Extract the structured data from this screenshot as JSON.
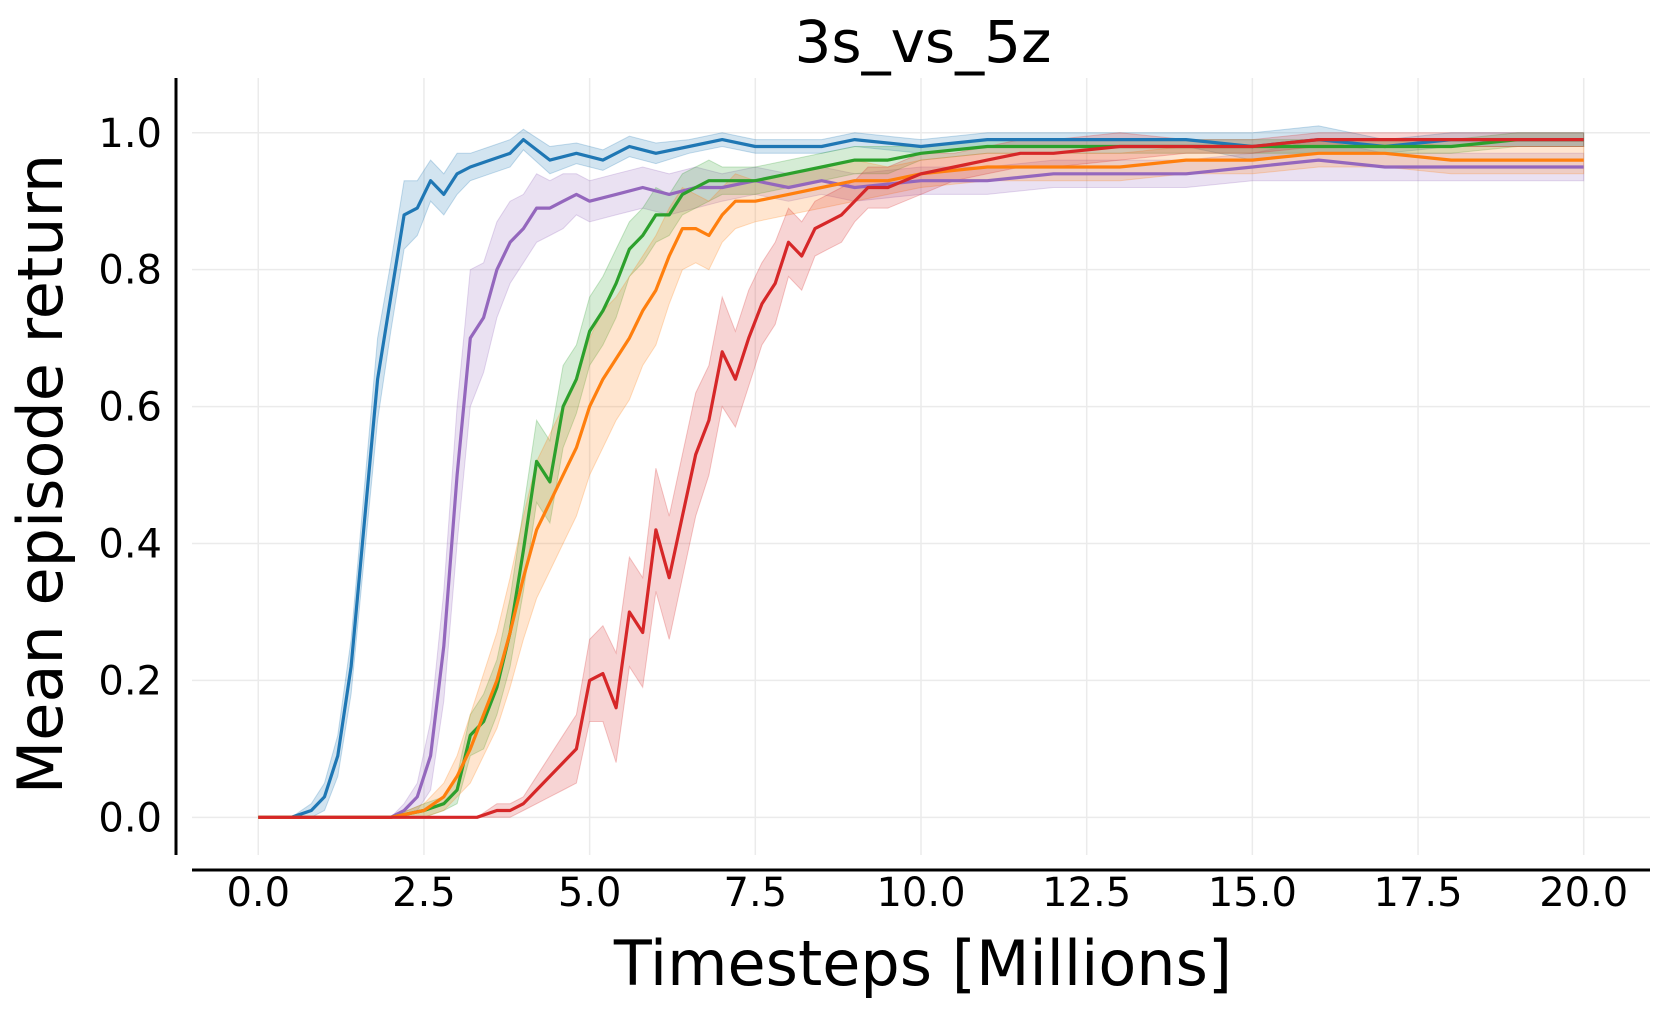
{
  "chart_data": {
    "type": "line",
    "title": "3s_vs_5z",
    "xlabel": "Timesteps [Millions]",
    "ylabel": "Mean episode return",
    "xlim": [
      -1.0,
      21.0
    ],
    "ylim": [
      -0.055,
      1.08
    ],
    "xticks": [
      0.0,
      2.5,
      5.0,
      7.5,
      10.0,
      12.5,
      15.0,
      17.5,
      20.0
    ],
    "xtick_labels": [
      "0.0",
      "2.5",
      "5.0",
      "7.5",
      "10.0",
      "12.5",
      "15.0",
      "17.5",
      "20.0"
    ],
    "yticks": [
      0.0,
      0.2,
      0.4,
      0.6,
      0.8,
      1.0
    ],
    "ytick_labels": [
      "0.0",
      "0.2",
      "0.4",
      "0.6",
      "0.8",
      "1.0"
    ],
    "grid": true,
    "legend": "none",
    "series": [
      {
        "color": "#1f77b4",
        "x": [
          0,
          0.5,
          0.8,
          1.0,
          1.2,
          1.4,
          1.6,
          1.8,
          2.0,
          2.2,
          2.4,
          2.6,
          2.8,
          3.0,
          3.2,
          3.5,
          3.8,
          4.0,
          4.4,
          4.8,
          5.2,
          5.6,
          6.0,
          6.5,
          7.0,
          7.5,
          8.0,
          8.5,
          9.0,
          10.0,
          11.0,
          12.0,
          13.0,
          14.0,
          15.0,
          16.0,
          17.0,
          18.0,
          19.0,
          20.0
        ],
        "y": [
          0,
          0,
          0.01,
          0.03,
          0.09,
          0.22,
          0.43,
          0.64,
          0.76,
          0.88,
          0.89,
          0.93,
          0.91,
          0.94,
          0.95,
          0.96,
          0.97,
          0.99,
          0.96,
          0.97,
          0.96,
          0.98,
          0.97,
          0.98,
          0.99,
          0.98,
          0.98,
          0.98,
          0.99,
          0.98,
          0.99,
          0.99,
          0.99,
          0.99,
          0.98,
          0.99,
          0.98,
          0.99,
          0.99,
          0.99
        ],
        "band": [
          0,
          0,
          0.01,
          0.02,
          0.03,
          0.04,
          0.05,
          0.06,
          0.05,
          0.05,
          0.04,
          0.03,
          0.03,
          0.03,
          0.02,
          0.02,
          0.02,
          0.015,
          0.02,
          0.015,
          0.015,
          0.015,
          0.015,
          0.01,
          0.01,
          0.01,
          0.01,
          0.01,
          0.01,
          0.01,
          0.01,
          0.01,
          0.01,
          0.01,
          0.02,
          0.02,
          0.01,
          0.01,
          0.01,
          0.01
        ]
      },
      {
        "color": "#9467bd",
        "x": [
          0,
          1.5,
          2.0,
          2.2,
          2.4,
          2.6,
          2.8,
          3.0,
          3.2,
          3.4,
          3.6,
          3.8,
          4.0,
          4.2,
          4.4,
          4.6,
          4.8,
          5.0,
          5.4,
          5.8,
          6.2,
          6.6,
          7.0,
          7.5,
          8.0,
          8.5,
          9.0,
          10.0,
          11.0,
          12.0,
          13.0,
          14.0,
          15.0,
          16.0,
          17.0,
          18.0,
          19.0,
          20.0
        ],
        "y": [
          0,
          0,
          0,
          0.01,
          0.03,
          0.09,
          0.25,
          0.5,
          0.7,
          0.73,
          0.8,
          0.84,
          0.86,
          0.89,
          0.89,
          0.9,
          0.91,
          0.9,
          0.91,
          0.92,
          0.91,
          0.92,
          0.92,
          0.93,
          0.92,
          0.93,
          0.92,
          0.93,
          0.93,
          0.94,
          0.94,
          0.94,
          0.95,
          0.96,
          0.95,
          0.95,
          0.95,
          0.95
        ],
        "band": [
          0,
          0,
          0,
          0.01,
          0.02,
          0.05,
          0.08,
          0.1,
          0.1,
          0.08,
          0.07,
          0.06,
          0.05,
          0.05,
          0.04,
          0.04,
          0.03,
          0.03,
          0.03,
          0.03,
          0.03,
          0.03,
          0.02,
          0.02,
          0.02,
          0.02,
          0.02,
          0.02,
          0.02,
          0.02,
          0.02,
          0.02,
          0.02,
          0.03,
          0.02,
          0.02,
          0.02,
          0.02
        ]
      },
      {
        "color": "#2ca02c",
        "x": [
          0,
          2.0,
          2.5,
          2.8,
          3.0,
          3.2,
          3.4,
          3.6,
          3.8,
          4.0,
          4.2,
          4.4,
          4.6,
          4.8,
          5.0,
          5.2,
          5.4,
          5.6,
          5.8,
          6.0,
          6.2,
          6.4,
          6.6,
          6.8,
          7.0,
          7.5,
          8.0,
          8.5,
          9.0,
          9.5,
          10.0,
          11.0,
          12.0,
          13.0,
          14.0,
          15.0,
          16.0,
          17.0,
          18.0,
          19.0,
          20.0
        ],
        "y": [
          0,
          0,
          0.01,
          0.02,
          0.04,
          0.12,
          0.14,
          0.19,
          0.27,
          0.39,
          0.52,
          0.49,
          0.6,
          0.64,
          0.71,
          0.74,
          0.78,
          0.83,
          0.85,
          0.88,
          0.88,
          0.91,
          0.92,
          0.93,
          0.93,
          0.93,
          0.94,
          0.95,
          0.96,
          0.96,
          0.97,
          0.98,
          0.98,
          0.98,
          0.98,
          0.98,
          0.98,
          0.98,
          0.98,
          0.99,
          0.99
        ],
        "band": [
          0,
          0,
          0.01,
          0.01,
          0.02,
          0.03,
          0.04,
          0.04,
          0.05,
          0.06,
          0.06,
          0.06,
          0.06,
          0.05,
          0.05,
          0.05,
          0.05,
          0.04,
          0.04,
          0.04,
          0.03,
          0.03,
          0.03,
          0.03,
          0.02,
          0.02,
          0.02,
          0.02,
          0.02,
          0.02,
          0.01,
          0.01,
          0.01,
          0.01,
          0.01,
          0.01,
          0.01,
          0.01,
          0.01,
          0.01,
          0.01
        ]
      },
      {
        "color": "#ff7f0e",
        "x": [
          0,
          2.0,
          2.5,
          2.8,
          3.0,
          3.2,
          3.4,
          3.6,
          3.8,
          4.0,
          4.2,
          4.4,
          4.6,
          4.8,
          5.0,
          5.2,
          5.4,
          5.6,
          5.8,
          6.0,
          6.2,
          6.4,
          6.6,
          6.8,
          7.0,
          7.2,
          7.5,
          8.0,
          8.5,
          9.0,
          9.5,
          10.0,
          11.0,
          12.0,
          13.0,
          14.0,
          15.0,
          16.0,
          17.0,
          18.0,
          19.0,
          20.0
        ],
        "y": [
          0,
          0,
          0.01,
          0.03,
          0.06,
          0.1,
          0.15,
          0.2,
          0.27,
          0.35,
          0.42,
          0.46,
          0.5,
          0.54,
          0.6,
          0.64,
          0.67,
          0.7,
          0.74,
          0.77,
          0.82,
          0.86,
          0.86,
          0.85,
          0.88,
          0.9,
          0.9,
          0.91,
          0.92,
          0.93,
          0.93,
          0.94,
          0.95,
          0.95,
          0.95,
          0.96,
          0.96,
          0.97,
          0.97,
          0.96,
          0.96,
          0.96
        ],
        "band": [
          0,
          0,
          0.01,
          0.02,
          0.03,
          0.05,
          0.06,
          0.07,
          0.08,
          0.09,
          0.1,
          0.1,
          0.1,
          0.1,
          0.1,
          0.1,
          0.09,
          0.09,
          0.08,
          0.08,
          0.07,
          0.06,
          0.05,
          0.05,
          0.04,
          0.04,
          0.03,
          0.03,
          0.03,
          0.03,
          0.02,
          0.02,
          0.02,
          0.02,
          0.02,
          0.02,
          0.02,
          0.02,
          0.02,
          0.02,
          0.02,
          0.02
        ]
      },
      {
        "color": "#d62728",
        "x": [
          0,
          3.0,
          3.3,
          3.6,
          3.8,
          4.0,
          4.2,
          4.4,
          4.6,
          4.8,
          5.0,
          5.2,
          5.4,
          5.6,
          5.8,
          6.0,
          6.2,
          6.4,
          6.6,
          6.8,
          7.0,
          7.2,
          7.4,
          7.6,
          7.8,
          8.0,
          8.2,
          8.4,
          8.6,
          8.8,
          9.0,
          9.2,
          9.5,
          10.0,
          10.5,
          11.0,
          11.5,
          12.0,
          13.0,
          14.0,
          15.0,
          16.0,
          17.0,
          18.0,
          19.0,
          20.0
        ],
        "y": [
          0,
          0,
          0,
          0.01,
          0.01,
          0.02,
          0.04,
          0.06,
          0.08,
          0.1,
          0.2,
          0.21,
          0.16,
          0.3,
          0.27,
          0.42,
          0.35,
          0.44,
          0.53,
          0.58,
          0.68,
          0.64,
          0.7,
          0.75,
          0.78,
          0.84,
          0.82,
          0.86,
          0.87,
          0.88,
          0.9,
          0.92,
          0.92,
          0.94,
          0.95,
          0.96,
          0.97,
          0.97,
          0.98,
          0.98,
          0.98,
          0.99,
          0.99,
          0.99,
          0.99,
          0.99
        ],
        "band": [
          0,
          0,
          0,
          0.01,
          0.01,
          0.01,
          0.02,
          0.03,
          0.04,
          0.05,
          0.06,
          0.07,
          0.08,
          0.08,
          0.08,
          0.09,
          0.09,
          0.09,
          0.09,
          0.08,
          0.08,
          0.07,
          0.07,
          0.06,
          0.06,
          0.05,
          0.05,
          0.04,
          0.04,
          0.04,
          0.03,
          0.03,
          0.03,
          0.03,
          0.02,
          0.02,
          0.02,
          0.02,
          0.02,
          0.01,
          0.01,
          0.01,
          0.01,
          0.01,
          0.01,
          0.01
        ]
      }
    ]
  }
}
